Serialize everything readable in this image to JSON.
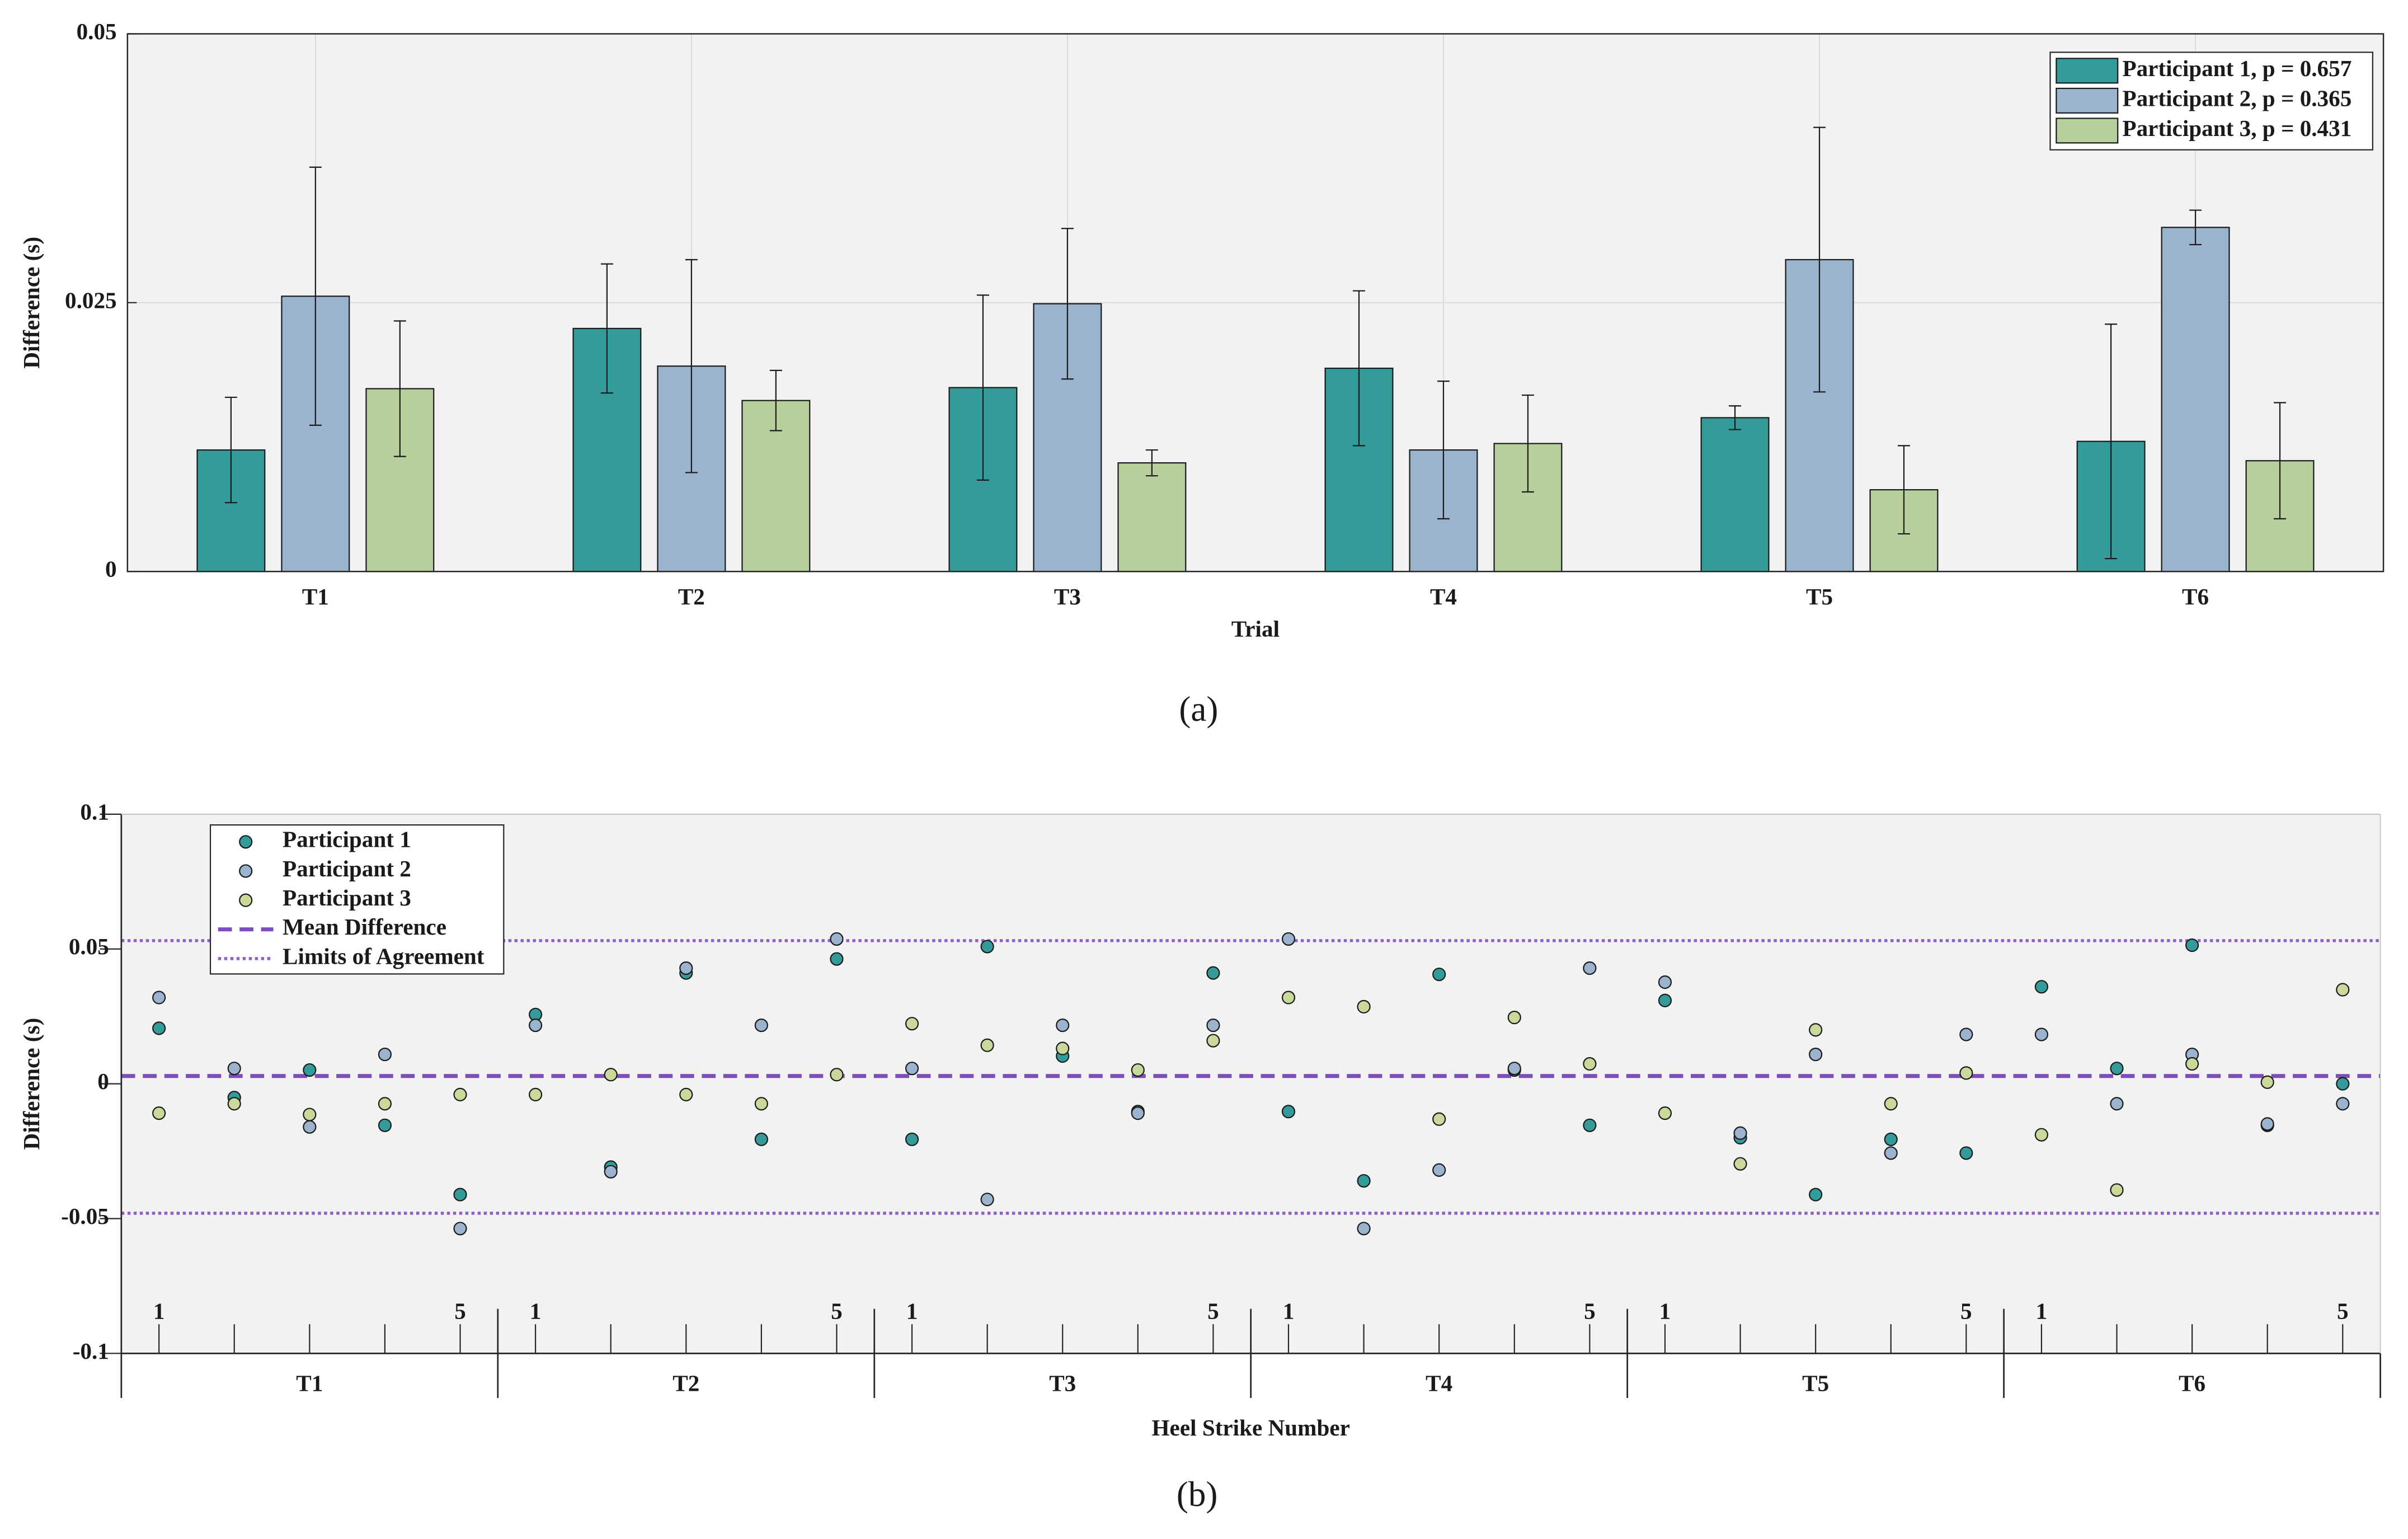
{
  "chart_data": [
    {
      "type": "bar",
      "x_label": "Trial",
      "y_label": "Difference (s)",
      "caption": "(a)",
      "categories": [
        "T1",
        "T2",
        "T3",
        "T4",
        "T5",
        "T6"
      ],
      "series": [
        {
          "name": "Participant 1, p = 0.657",
          "color": "#339c9a",
          "values": [
            0.0113,
            0.0226,
            0.0171,
            0.0189,
            0.0143,
            0.0121
          ],
          "errors": [
            0.0049,
            0.006,
            0.0086,
            0.0072,
            0.0011,
            0.0109
          ]
        },
        {
          "name": "Participant 2, p = 0.365",
          "color": "#9bb3cf",
          "values": [
            0.0256,
            0.0191,
            0.0249,
            0.0113,
            0.029,
            0.032
          ],
          "errors": [
            0.012,
            0.0099,
            0.007,
            0.0064,
            0.0123,
            0.0016
          ]
        },
        {
          "name": "Participant 3, p = 0.431",
          "color": "#b7cf9b",
          "values": [
            0.017,
            0.0159,
            0.0101,
            0.0119,
            0.0076,
            0.0103
          ],
          "errors": [
            0.0063,
            0.0028,
            0.0012,
            0.0045,
            0.0041,
            0.0054
          ]
        }
      ],
      "ylim": [
        0,
        0.05
      ],
      "yticks": [
        0,
        0.025,
        0.05
      ],
      "grid": true,
      "legend": "upper right"
    },
    {
      "type": "scatter",
      "x_label": "Heel Strike Number",
      "y_label": "Difference (s)",
      "caption": "(b)",
      "x": [
        1,
        2,
        3,
        4,
        5,
        6,
        7,
        8,
        9,
        10,
        11,
        12,
        13,
        14,
        15,
        16,
        17,
        18,
        19,
        20,
        21,
        22,
        23,
        24,
        25,
        26,
        27,
        28,
        29,
        30
      ],
      "xlim": [
        0.5,
        30.5
      ],
      "xticks": [
        {
          "value": 1,
          "label": "1"
        },
        {
          "value": 2,
          "label": null
        },
        {
          "value": 3,
          "label": null
        },
        {
          "value": 4,
          "label": null
        },
        {
          "value": 5,
          "label": "5"
        },
        {
          "value": 6,
          "label": "1"
        },
        {
          "value": 7,
          "label": null
        },
        {
          "value": 8,
          "label": null
        },
        {
          "value": 9,
          "label": null
        },
        {
          "value": 10,
          "label": "5"
        },
        {
          "value": 11,
          "label": "1"
        },
        {
          "value": 12,
          "label": null
        },
        {
          "value": 13,
          "label": null
        },
        {
          "value": 14,
          "label": null
        },
        {
          "value": 15,
          "label": "5"
        },
        {
          "value": 16,
          "label": "1"
        },
        {
          "value": 17,
          "label": null
        },
        {
          "value": 18,
          "label": null
        },
        {
          "value": 19,
          "label": null
        },
        {
          "value": 20,
          "label": "5"
        },
        {
          "value": 21,
          "label": "1"
        },
        {
          "value": 22,
          "label": null
        },
        {
          "value": 23,
          "label": null
        },
        {
          "value": 24,
          "label": null
        },
        {
          "value": 25,
          "label": "5"
        },
        {
          "value": 26,
          "label": "1"
        },
        {
          "value": 27,
          "label": null
        },
        {
          "value": 28,
          "label": null
        },
        {
          "value": 29,
          "label": null
        },
        {
          "value": 30,
          "label": "5"
        }
      ],
      "groups": [
        "T1",
        "T2",
        "T3",
        "T4",
        "T5",
        "T6"
      ],
      "series": [
        {
          "name": "Participant 1",
          "color": "#339c9a",
          "values": [
            0.0206,
            -0.0051,
            0.0051,
            -0.0154,
            -0.0411,
            0.0257,
            -0.0309,
            0.0411,
            -0.0206,
            0.0463,
            -0.0206,
            0.0509,
            0.0103,
            -0.0103,
            0.0411,
            -0.0103,
            -0.036,
            0.0406,
            0.0051,
            -0.0154,
            0.0309,
            -0.02,
            -0.0411,
            -0.0206,
            -0.0257,
            0.036,
            0.0057,
            0.0514,
            -0.0154,
            0
          ]
        },
        {
          "name": "Participant 2",
          "color": "#9bb3cf",
          "values": [
            0.032,
            0.0057,
            -0.016,
            0.0109,
            -0.0537,
            0.0217,
            -0.0326,
            0.0429,
            0.0217,
            0.0537,
            0.0057,
            -0.0429,
            0.0217,
            -0.0109,
            0.0217,
            0.0537,
            -0.0537,
            -0.032,
            0.0057,
            0.0429,
            0.0377,
            -0.0183,
            0.0109,
            -0.0257,
            0.0183,
            0.0183,
            -0.0074,
            0.0109,
            -0.0149,
            -0.0074
          ]
        },
        {
          "name": "Participant 3",
          "color": "#c9d99a",
          "values": [
            -0.0109,
            -0.0074,
            -0.0114,
            -0.0074,
            -0.004,
            -0.004,
            0.0034,
            -0.004,
            -0.0074,
            0.0034,
            0.0223,
            0.0143,
            0.0131,
            0.0051,
            0.016,
            0.032,
            0.0286,
            -0.0131,
            0.0246,
            0.0074,
            -0.0109,
            -0.0297,
            0.02,
            -0.0074,
            0.004,
            -0.0189,
            -0.0394,
            0.0074,
            0.0006,
            0.0349
          ]
        }
      ],
      "reference_lines": [
        {
          "name": "Mean Difference",
          "color": "#7c4dbb",
          "style": "dashed",
          "values": [
            0.0029
          ]
        },
        {
          "name": "Limits of Agreement",
          "color": "#8b62c4",
          "style": "dotted",
          "values": [
            0.0531,
            -0.048
          ]
        }
      ],
      "ylim": [
        -0.1,
        0.1
      ],
      "yticks": [
        -0.1,
        -0.05,
        0,
        0.05,
        0.1
      ],
      "grid": false,
      "legend": "upper left"
    }
  ]
}
